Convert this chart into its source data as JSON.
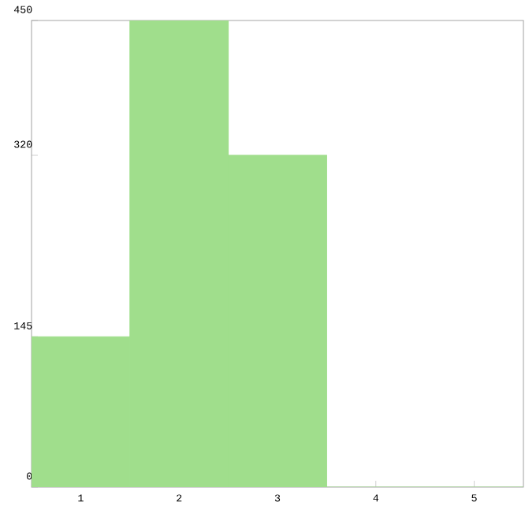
{
  "chart_data": {
    "type": "bar",
    "categories": [
      "1",
      "2",
      "3",
      "4",
      "5"
    ],
    "values": [
      145,
      450,
      320,
      0,
      0
    ],
    "color": "#a0de8c",
    "ylim": [
      0,
      450
    ],
    "yticks": [
      0,
      145,
      320,
      450
    ],
    "grid": false
  }
}
